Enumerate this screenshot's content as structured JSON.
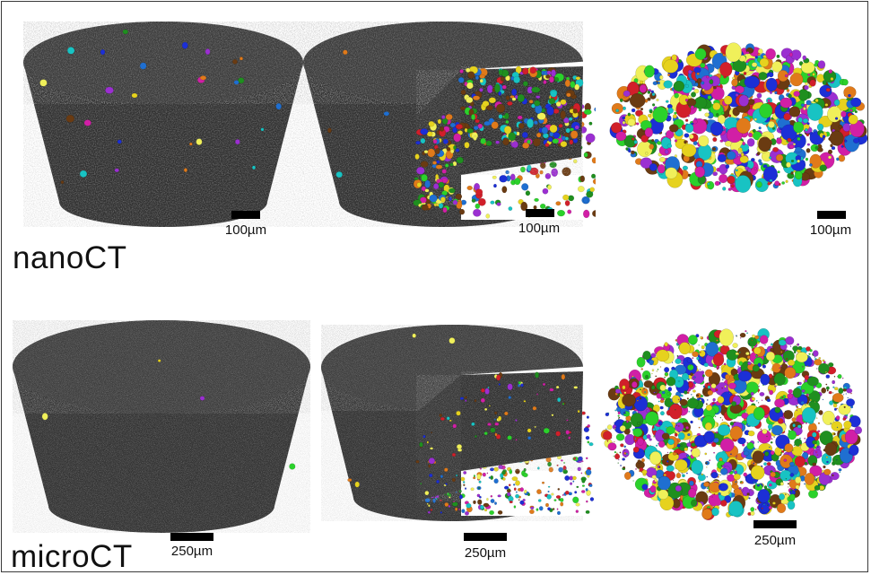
{
  "figure": {
    "rows": [
      {
        "label": "nanoCT",
        "scale_labels": [
          "100µm",
          "100µm",
          "100µm"
        ]
      },
      {
        "label": "microCT",
        "scale_labels": [
          "250µm",
          "250µm",
          "250µm"
        ]
      }
    ]
  },
  "colors": {
    "frame_border": "#3a3a3a",
    "sample_gray": "#3c3c3c",
    "sample_top": "#4a4a4a",
    "scalebar": "#000000",
    "particle_palette": [
      "#e6d21e",
      "#1f8f1f",
      "#d11f2a",
      "#1c2fd6",
      "#18c3c3",
      "#9b2fd1",
      "#e07a1a",
      "#2bd12b",
      "#d11fa6",
      "#6a3b12",
      "#1f6fd1",
      "#f0f05a"
    ]
  }
}
